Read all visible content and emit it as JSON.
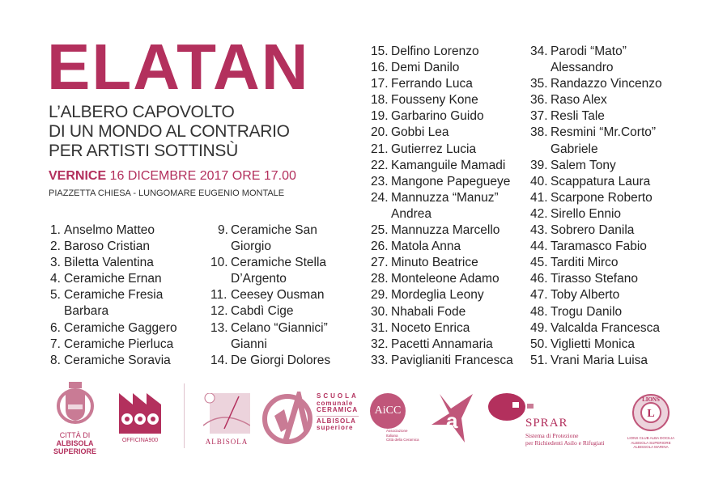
{
  "header": {
    "title": "ELATAN",
    "subtitle_lines": [
      "L’ALBERO CAPOVOLTO",
      "DI UN MONDO AL CONTRARIO",
      "PER ARTISTI SOTTINSÙ"
    ],
    "vernice_label": "VERNICE",
    "vernice_date": " 16 DICEMBRE 2017 ORE 17.00",
    "location": "PIAZZETTA CHIESA - LUNGOMARE EUGENIO MONTALE"
  },
  "artists": {
    "col1": [
      {
        "n": "1.",
        "lines": [
          "Anselmo Matteo"
        ]
      },
      {
        "n": "2.",
        "lines": [
          "Baroso Cristian"
        ]
      },
      {
        "n": "3.",
        "lines": [
          "Biletta Valentina"
        ]
      },
      {
        "n": "4.",
        "lines": [
          "Ceramiche Ernan"
        ]
      },
      {
        "n": "5.",
        "lines": [
          "Ceramiche Fresia",
          "Barbara"
        ]
      },
      {
        "n": "6.",
        "lines": [
          "Ceramiche Gaggero"
        ]
      },
      {
        "n": "7.",
        "lines": [
          "Ceramiche Pierluca"
        ]
      },
      {
        "n": "8.",
        "lines": [
          "Ceramiche Soravia"
        ]
      }
    ],
    "col2": [
      {
        "n": "9.",
        "lines": [
          "Ceramiche San",
          "Giorgio"
        ]
      },
      {
        "n": "10.",
        "lines": [
          "Ceramiche Stella",
          "D’Argento"
        ]
      },
      {
        "n": "11.",
        "lines": [
          "Ceesey Ousman"
        ]
      },
      {
        "n": "12.",
        "lines": [
          "Cabdì Cige"
        ]
      },
      {
        "n": "13.",
        "lines": [
          "Celano “Giannici”",
          "Gianni"
        ]
      },
      {
        "n": "14.",
        "lines": [
          "De Giorgi Dolores"
        ]
      }
    ],
    "col3": [
      {
        "n": "15.",
        "lines": [
          "Delfino Lorenzo"
        ]
      },
      {
        "n": "16.",
        "lines": [
          "Demi Danilo"
        ]
      },
      {
        "n": "17.",
        "lines": [
          "Ferrando Luca"
        ]
      },
      {
        "n": "18.",
        "lines": [
          "Fousseny Kone"
        ]
      },
      {
        "n": "19.",
        "lines": [
          "Garbarino Guido"
        ]
      },
      {
        "n": "20.",
        "lines": [
          "Gobbi Lea"
        ]
      },
      {
        "n": "21.",
        "lines": [
          "Gutierrez Lucia"
        ]
      },
      {
        "n": "22.",
        "lines": [
          "Kamanguile Mamadi"
        ]
      },
      {
        "n": "23.",
        "lines": [
          "Mangone Papegueye"
        ]
      },
      {
        "n": "24.",
        "lines": [
          "Mannuzza “Manuz”",
          "Andrea"
        ]
      },
      {
        "n": "25.",
        "lines": [
          "Mannuzza Marcello"
        ]
      },
      {
        "n": "26.",
        "lines": [
          "Matola Anna"
        ]
      },
      {
        "n": "27.",
        "lines": [
          "Minuto Beatrice"
        ]
      },
      {
        "n": "28.",
        "lines": [
          "Monteleone Adamo"
        ]
      },
      {
        "n": "29.",
        "lines": [
          "Mordeglia Leony"
        ]
      },
      {
        "n": "30.",
        "lines": [
          "Nhabali Fode"
        ]
      },
      {
        "n": "31.",
        "lines": [
          "Noceto Enrica"
        ]
      },
      {
        "n": "32.",
        "lines": [
          "Pacetti Annamaria"
        ]
      },
      {
        "n": "33.",
        "lines": [
          "Paviglianiti Francesca"
        ]
      }
    ],
    "col4": [
      {
        "n": "34.",
        "lines": [
          "Parodi “Mato”",
          "Alessandro"
        ]
      },
      {
        "n": "35.",
        "lines": [
          "Randazzo Vincenzo"
        ]
      },
      {
        "n": "36.",
        "lines": [
          "Raso Alex"
        ]
      },
      {
        "n": "37.",
        "lines": [
          "Resli Tale"
        ]
      },
      {
        "n": "38.",
        "lines": [
          "Resmini “Mr.Corto”",
          "Gabriele"
        ]
      },
      {
        "n": "39.",
        "lines": [
          "Salem Tony"
        ]
      },
      {
        "n": "40.",
        "lines": [
          "Scappatura Laura"
        ]
      },
      {
        "n": "41.",
        "lines": [
          "Scarpone Roberto"
        ]
      },
      {
        "n": "42.",
        "lines": [
          "Sirello Ennio"
        ]
      },
      {
        "n": "43.",
        "lines": [
          "Sobrero Danila"
        ]
      },
      {
        "n": "44.",
        "lines": [
          "Taramasco Fabio"
        ]
      },
      {
        "n": "45.",
        "lines": [
          "Tarditi Mirco"
        ]
      },
      {
        "n": "46.",
        "lines": [
          "Tirasso Stefano"
        ]
      },
      {
        "n": "47.",
        "lines": [
          "Toby Alberto"
        ]
      },
      {
        "n": "48.",
        "lines": [
          "Trogu Danilo"
        ]
      },
      {
        "n": "49.",
        "lines": [
          "Valcalda Francesca"
        ]
      },
      {
        "n": "50.",
        "lines": [
          "Viglietti Monica"
        ]
      },
      {
        "n": "51.",
        "lines": [
          "Vrani Maria Luisa"
        ]
      }
    ]
  },
  "logos": {
    "citta": {
      "line1": "CITTÀ DI",
      "line2": "ALBISOLA",
      "line3": "SUPERIORE"
    },
    "officina": {
      "mark": "900",
      "text": "OFFICINA900"
    },
    "albisola": {
      "text": "ALBISOLA"
    },
    "scuola": {
      "line1": "SCUOLA",
      "line2": "comunale",
      "line3": "CERAMICA",
      "line4": "ALBISOLA",
      "line5": "superiore"
    },
    "aicc": {
      "mark": "AiCC",
      "line1": "Associazione",
      "line2": "Italiana",
      "line3": "Città della Ceramica"
    },
    "star": {
      "mark": "a"
    },
    "sprar": {
      "name": "SPRAR",
      "line1": "Sistema di Protezione",
      "line2": "per Richiedenti Asilo e Rifugiati"
    },
    "lions": {
      "mark": "L",
      "top": "LIONS",
      "line1": "LIONS CLUB ALBA DOCILIA",
      "line2": "ALBISOLA SUPERIORE",
      "line3": "ALBISSOLA MARINA"
    }
  },
  "colors": {
    "accent": "#b3305d",
    "logo_light": "#c97b95",
    "text": "#222222"
  }
}
